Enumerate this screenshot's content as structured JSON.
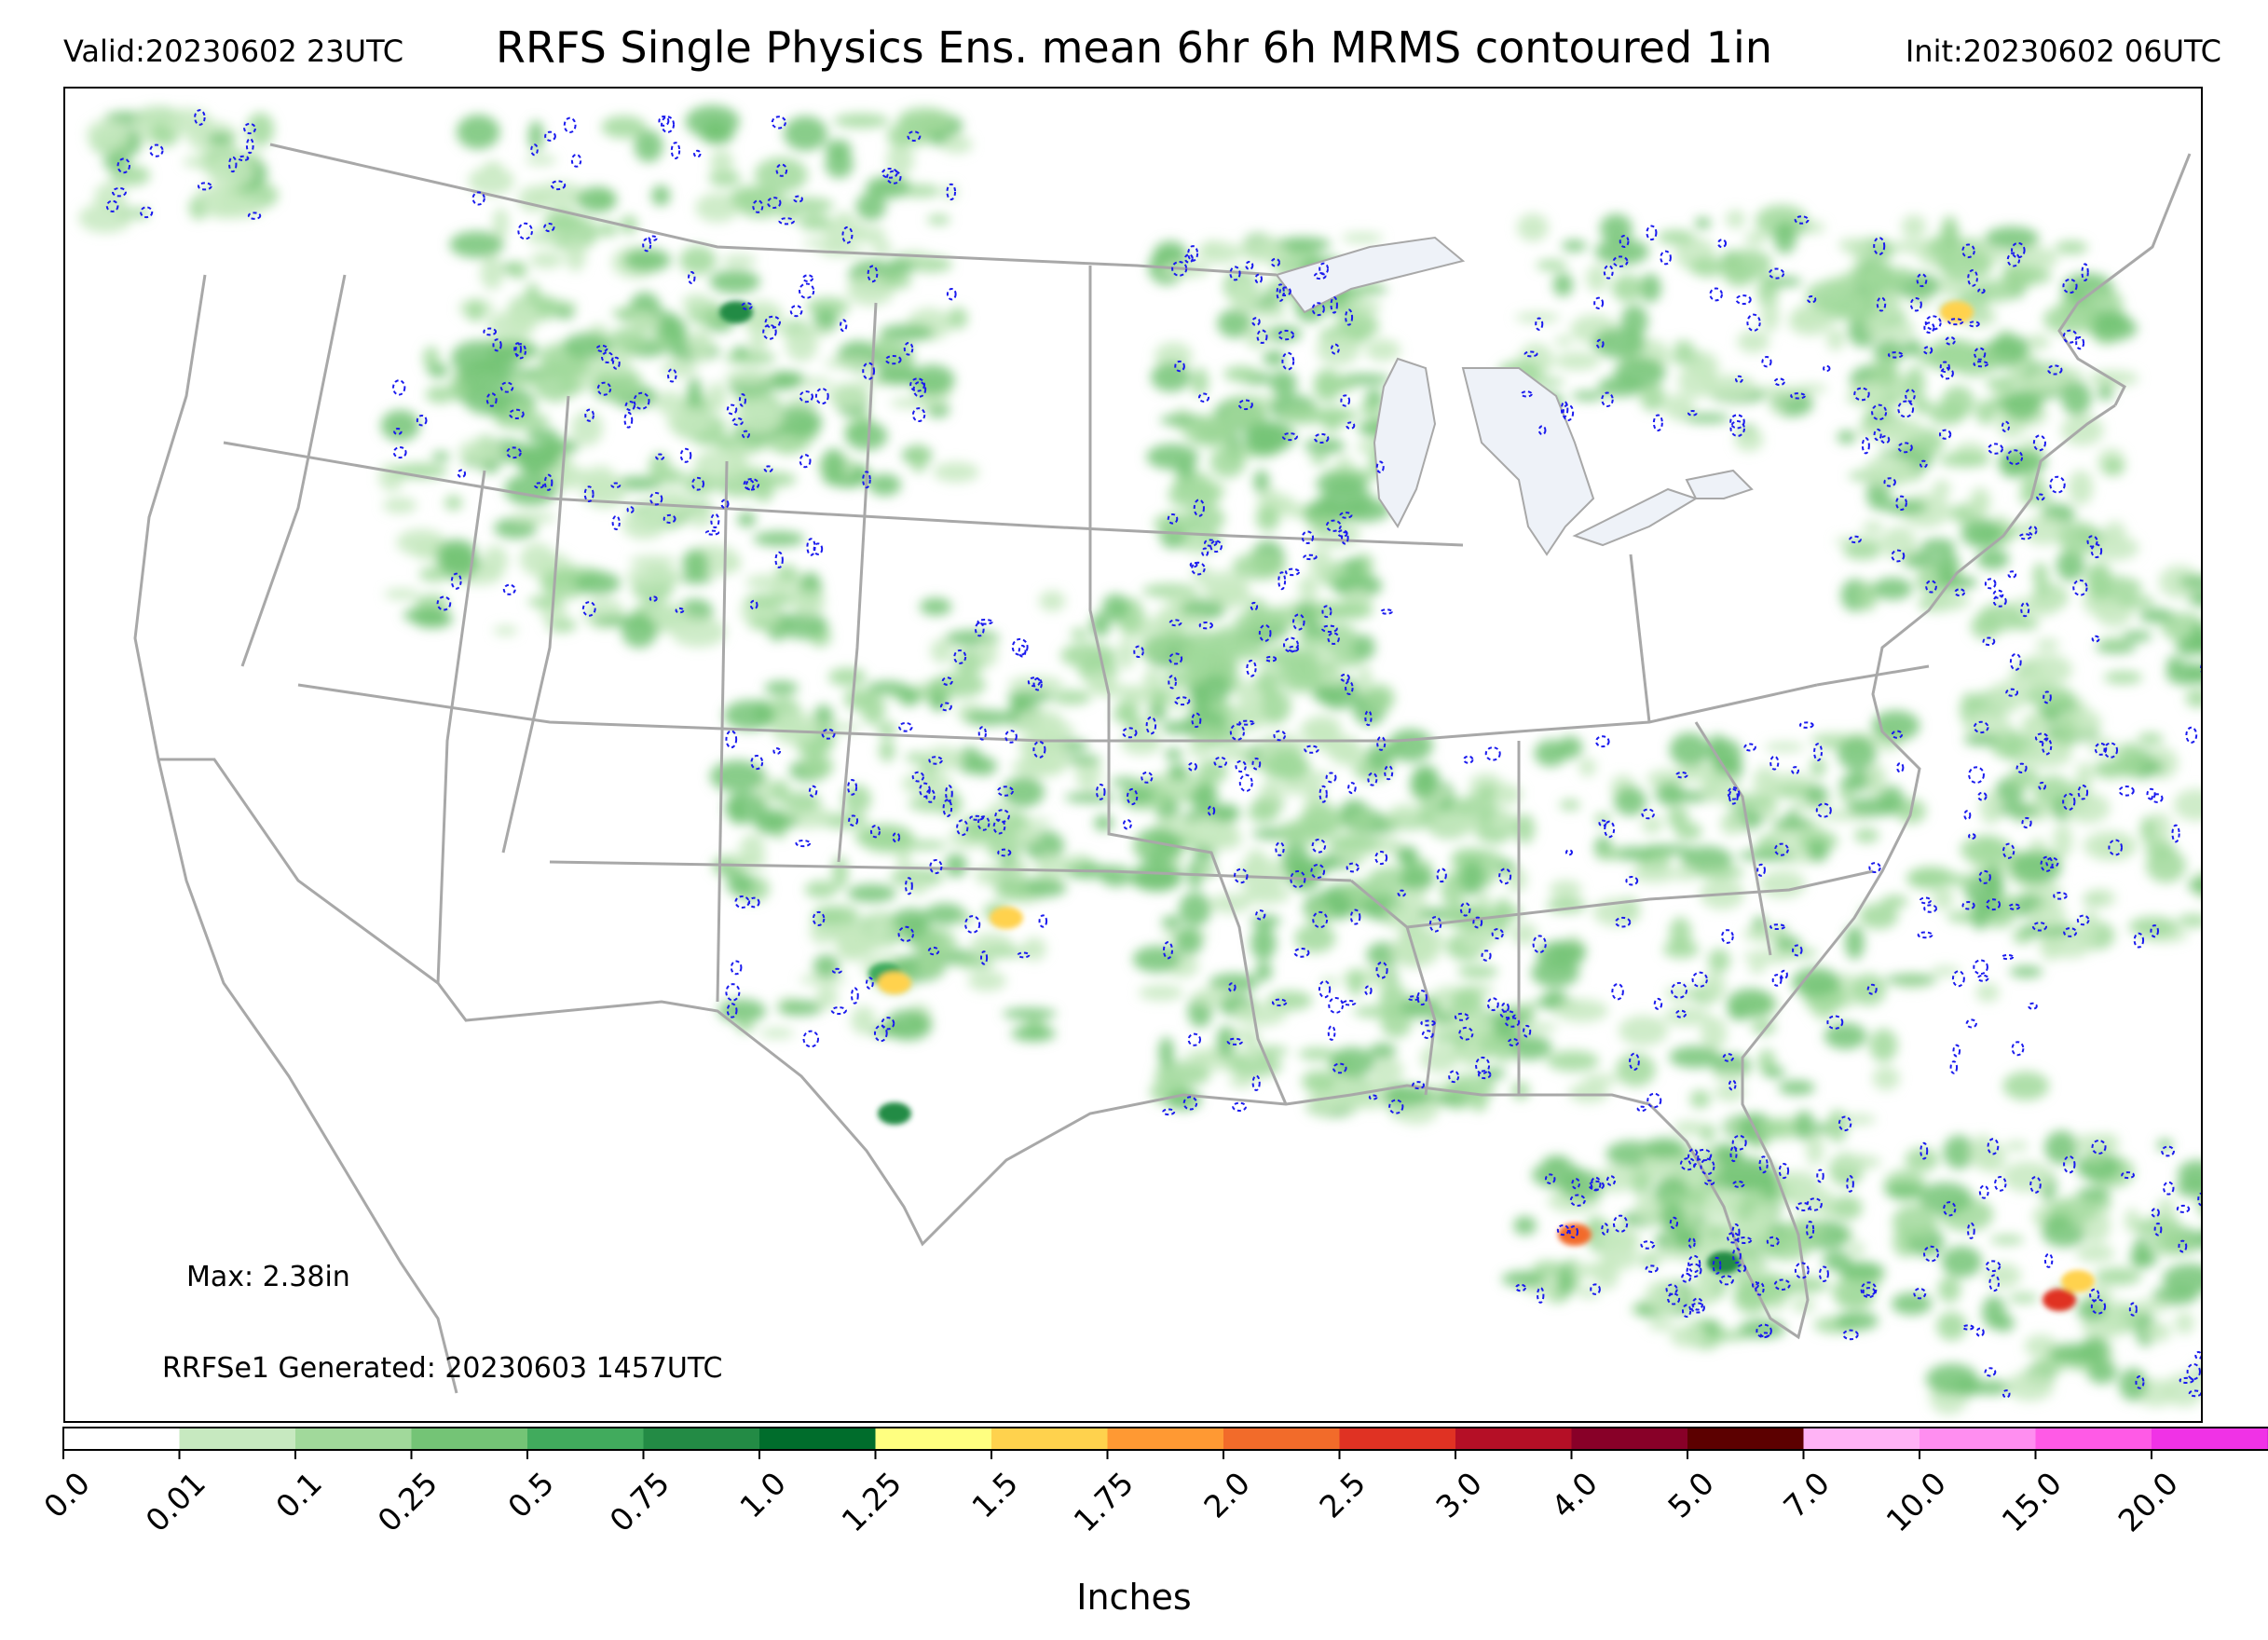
{
  "header": {
    "valid": "Valid:20230602 23UTC",
    "title": "RRFS Single Physics Ens. mean 6hr 6h MRMS contoured 1in",
    "init": "Init:20230602 06UTC"
  },
  "annotations": {
    "max": "Max: 2.38in",
    "generated": "RRFSe1 Generated: 20230603 1457UTC"
  },
  "colorbar": {
    "label": "Inches",
    "ticks": [
      "0.0",
      "0.01",
      "0.1",
      "0.25",
      "0.5",
      "0.75",
      "1.0",
      "1.25",
      "1.5",
      "1.75",
      "2.0",
      "2.5",
      "3.0",
      "4.0",
      "5.0",
      "7.0",
      "10.0",
      "15.0",
      "20.0"
    ],
    "colors": [
      "#ffffff",
      "#c7e9c0",
      "#a1d99b",
      "#74c476",
      "#41ab5d",
      "#238b45",
      "#006d2c",
      "#ffff80",
      "#ffd24d",
      "#ff9933",
      "#f26b2a",
      "#e03223",
      "#b50f26",
      "#880028",
      "#5c0000",
      "#ffb3f5",
      "#ff8ef0",
      "#ff5ae6",
      "#f032e6",
      "#c814d2",
      "#8c00b4"
    ],
    "extend": "max"
  },
  "legend_colors": {
    "map_lines": "#a8a8a8",
    "lakes": "#eef2f8",
    "contour": "#1a1aee"
  }
}
